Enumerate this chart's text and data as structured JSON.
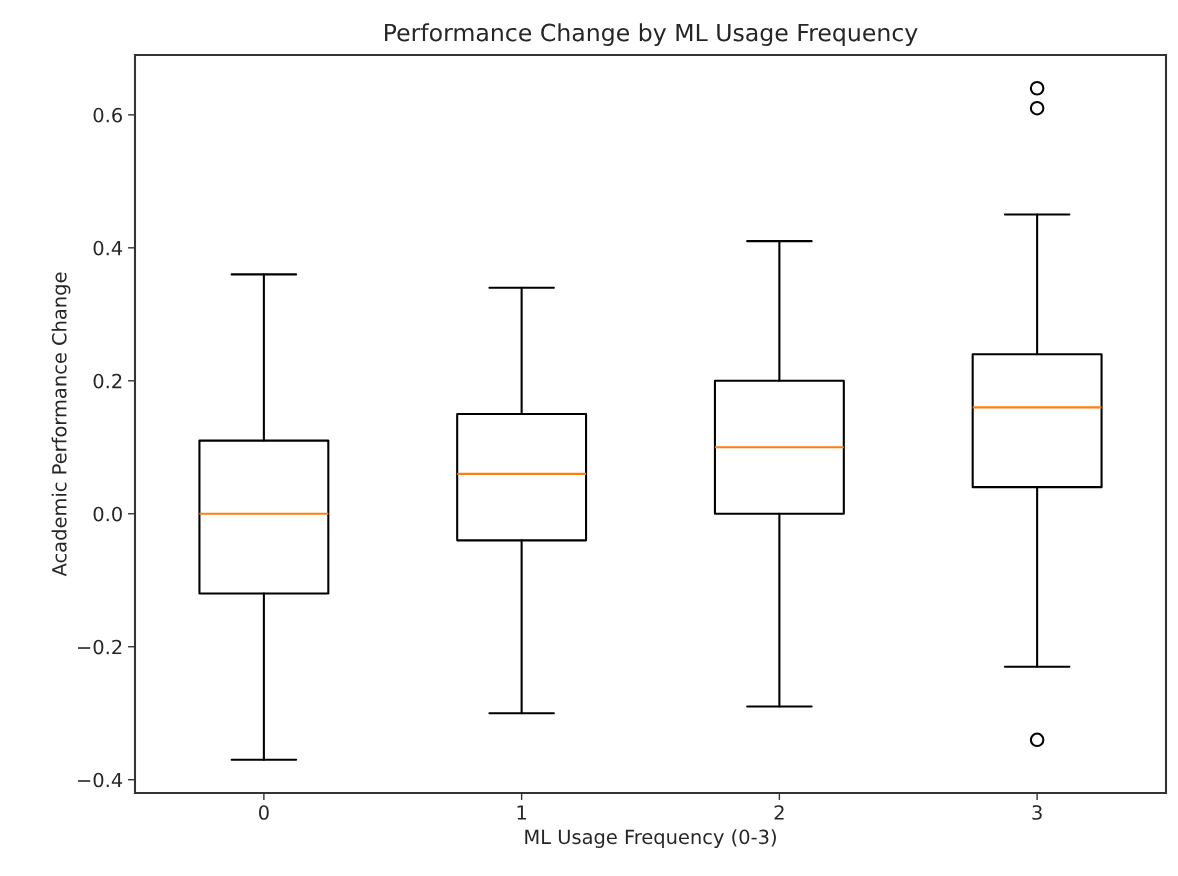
{
  "chart_data": {
    "type": "box",
    "title": "Performance Change by ML Usage Frequency",
    "xlabel": "ML Usage Frequency (0-3)",
    "ylabel": "Academic Performance Change",
    "categories": [
      "0",
      "1",
      "2",
      "3"
    ],
    "series": [
      {
        "color": "#000000",
        "boxes": [
          {
            "low": -0.37,
            "q1": -0.12,
            "median": 0.0,
            "q3": 0.11,
            "high": 0.36
          },
          {
            "low": -0.3,
            "q1": -0.04,
            "median": 0.06,
            "q3": 0.15,
            "high": 0.34
          },
          {
            "low": -0.29,
            "q1": 0.0,
            "median": 0.1,
            "q3": 0.2,
            "high": 0.41
          },
          {
            "low": -0.23,
            "q1": 0.04,
            "median": 0.16,
            "q3": 0.24,
            "high": 0.45,
            "outliers": [
              0.64,
              0.61,
              -0.34
            ]
          }
        ]
      }
    ],
    "ylim": [
      -0.42,
      0.69
    ],
    "yticks": [
      {
        "value": -0.4,
        "label": "−0.4"
      },
      {
        "value": -0.2,
        "label": "−0.2"
      },
      {
        "value": 0.0,
        "label": "0.0"
      },
      {
        "value": 0.2,
        "label": "0.2"
      },
      {
        "value": 0.4,
        "label": "0.4"
      },
      {
        "value": 0.6,
        "label": "0.6"
      }
    ],
    "grid": false,
    "legend": false
  }
}
